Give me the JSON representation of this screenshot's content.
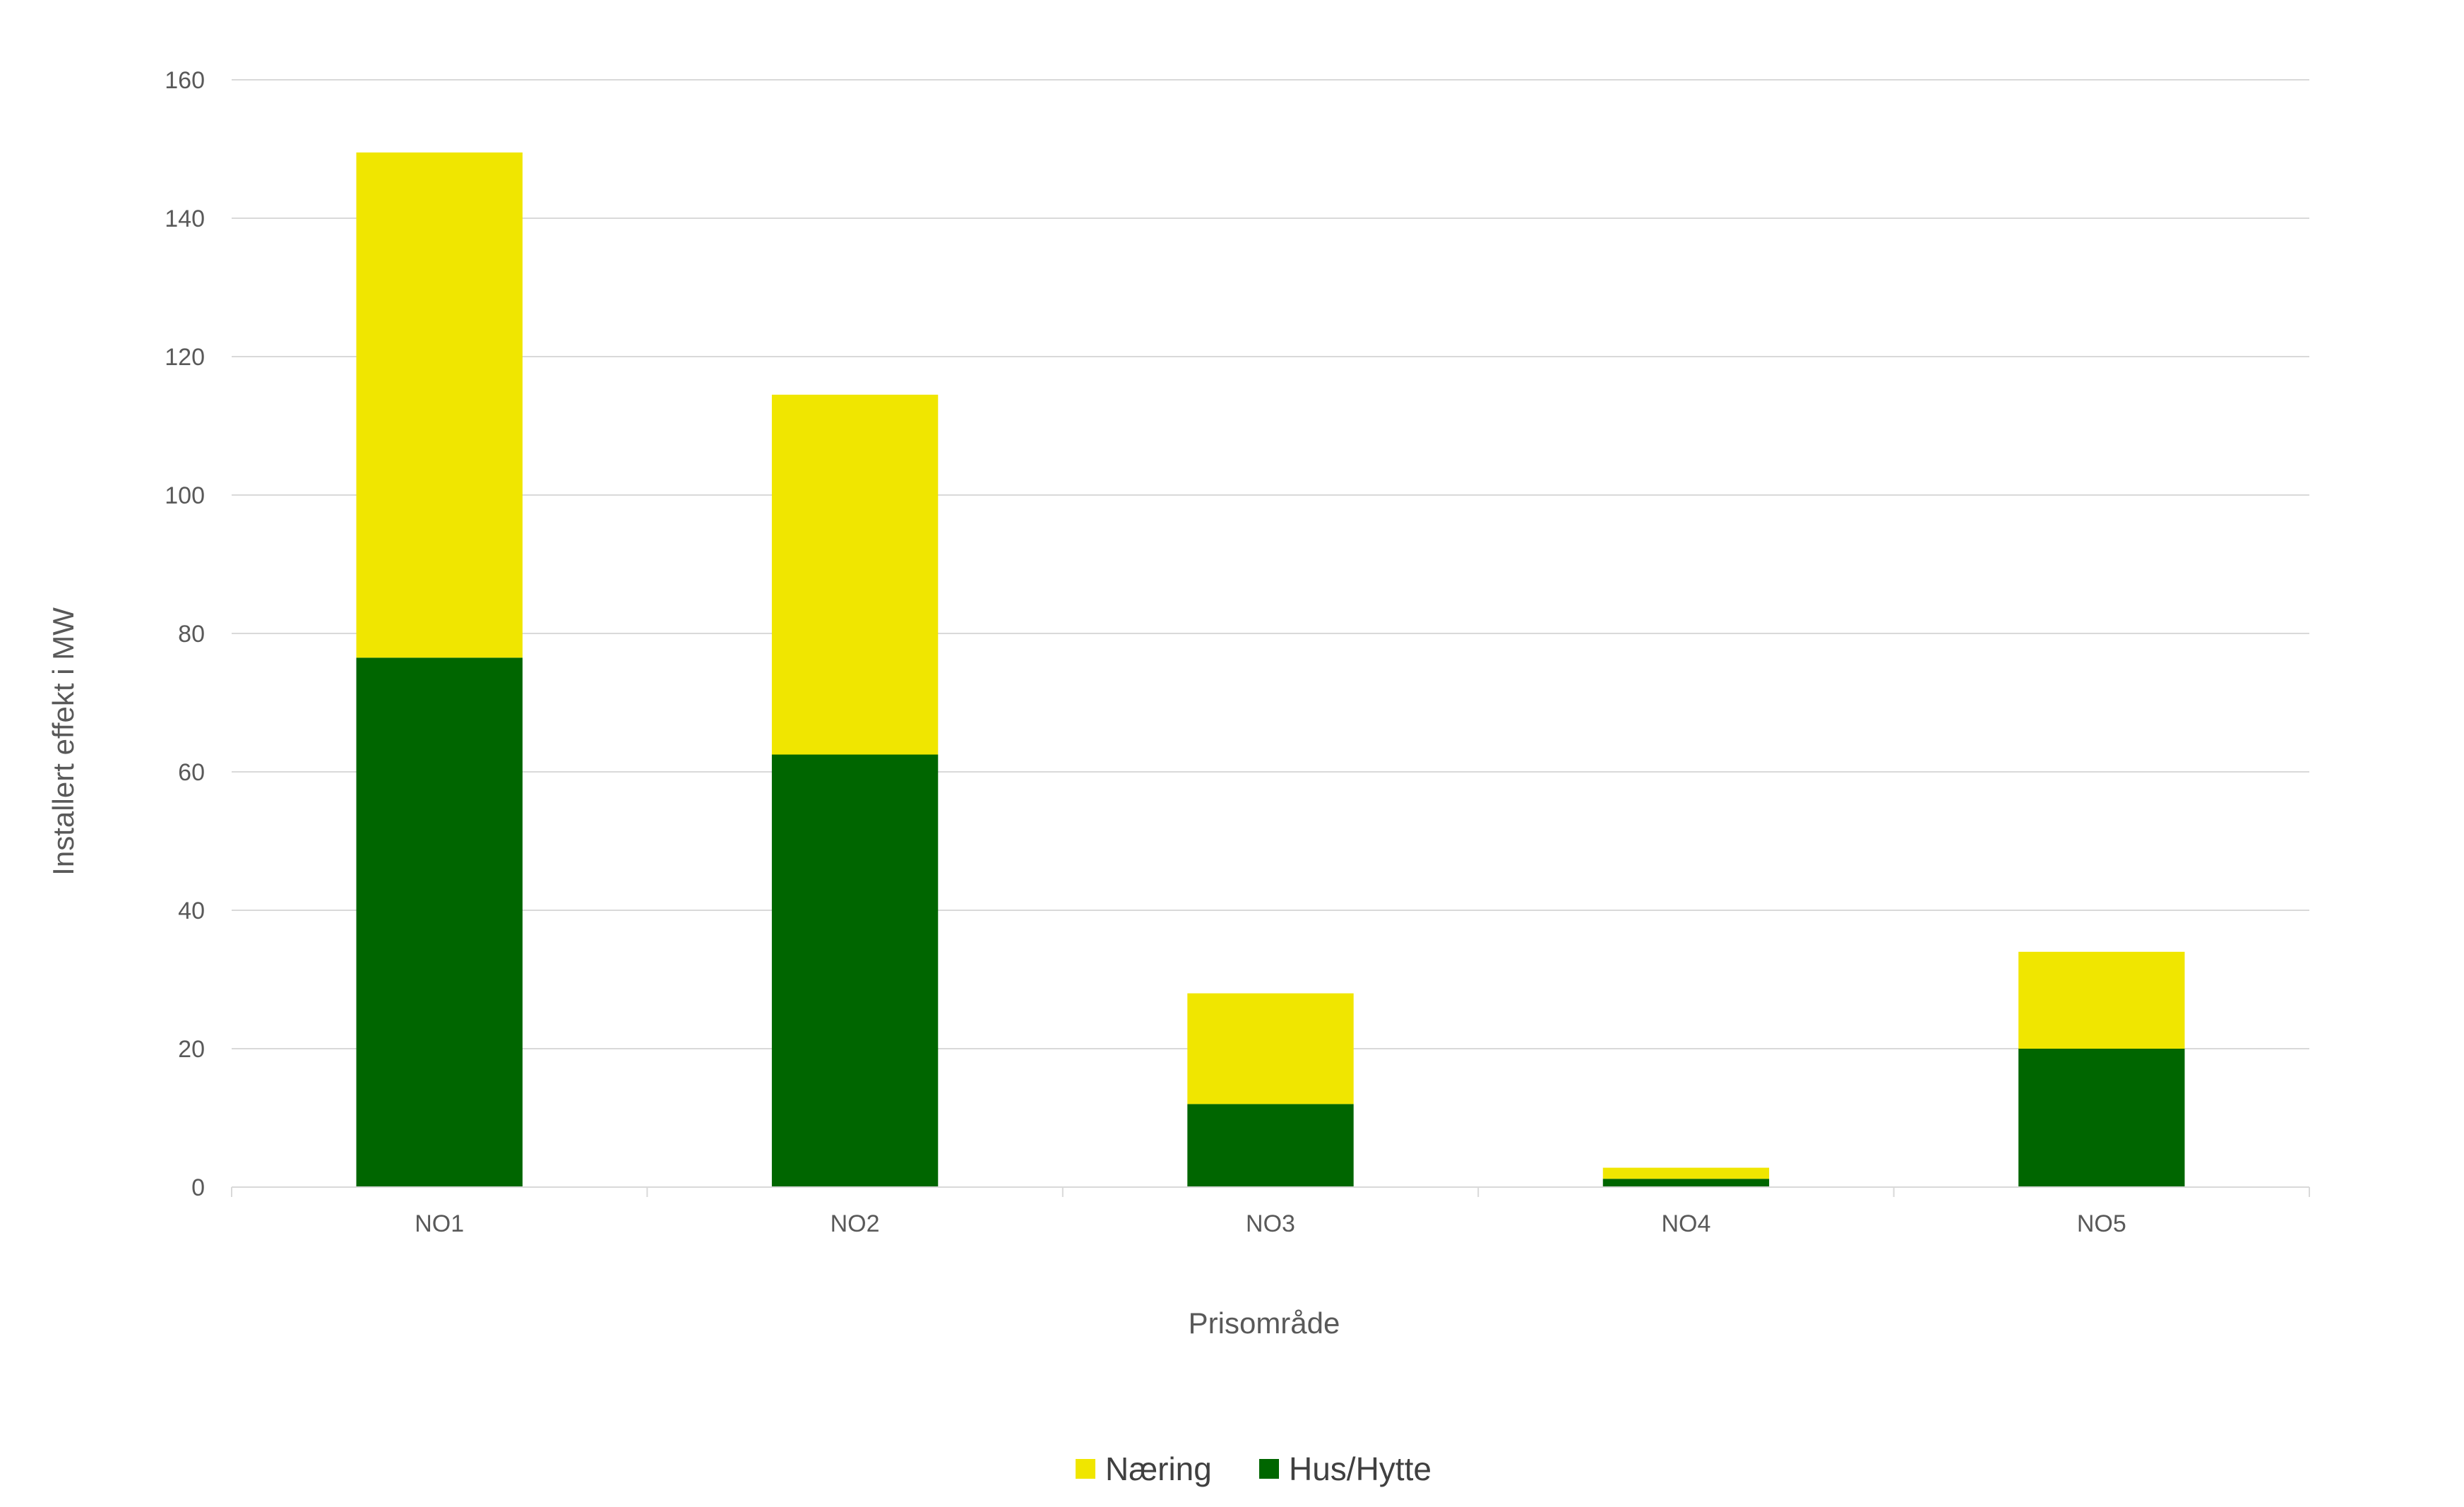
{
  "chart_data": {
    "type": "bar",
    "stacked": true,
    "title": "",
    "xlabel": "Prisområde",
    "ylabel": "Installert effekt i MW",
    "categories": [
      "NO1",
      "NO2",
      "NO3",
      "NO4",
      "NO5"
    ],
    "series": [
      {
        "name": "Hus/Hytte",
        "color": "#006600",
        "values": [
          76.5,
          62.5,
          12,
          1.2,
          20
        ]
      },
      {
        "name": "Næring",
        "color": "#F0E600",
        "values": [
          73,
          52,
          16,
          1.6,
          14
        ]
      }
    ],
    "ylim": [
      0,
      160
    ],
    "yticks": [
      0,
      20,
      40,
      60,
      80,
      100,
      120,
      140,
      160
    ],
    "grid": true,
    "legend": "bottom",
    "legend_order": [
      "Næring",
      "Hus/Hytte"
    ]
  }
}
